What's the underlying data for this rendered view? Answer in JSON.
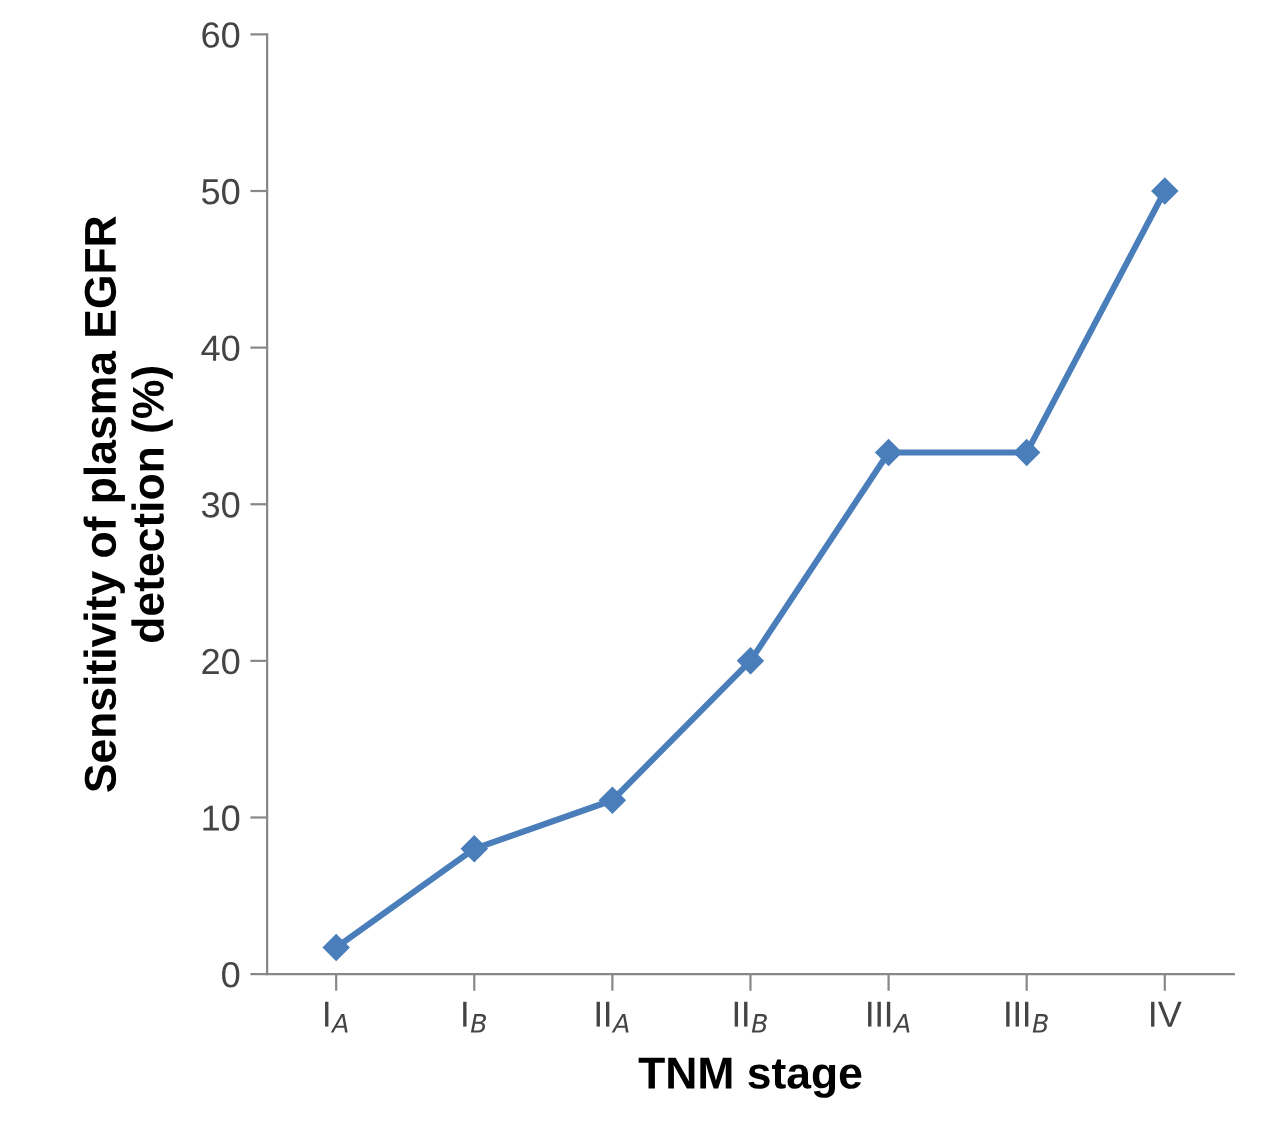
{
  "chart_data": {
    "type": "line",
    "xlabel": "TNM stage",
    "ylabel": "Sensitivity of plasma EGFR\ndetection (%)",
    "categories": [
      "I$_{A}$",
      "I$_{B}$",
      "II$_{A}$",
      "II$_{B}$",
      "III$_{A}$",
      "III$_{B}$",
      "IV"
    ],
    "series": [
      {
        "color": "#4a7ebb",
        "values": [
          1.7,
          8,
          11.1,
          20,
          33.3,
          33.3,
          50
        ]
      }
    ],
    "ylim": [
      0,
      60
    ],
    "yticks": [
      0,
      10,
      20,
      30,
      40,
      50,
      60
    ],
    "grid": false,
    "marker": "diamond",
    "line_style": "solid"
  }
}
